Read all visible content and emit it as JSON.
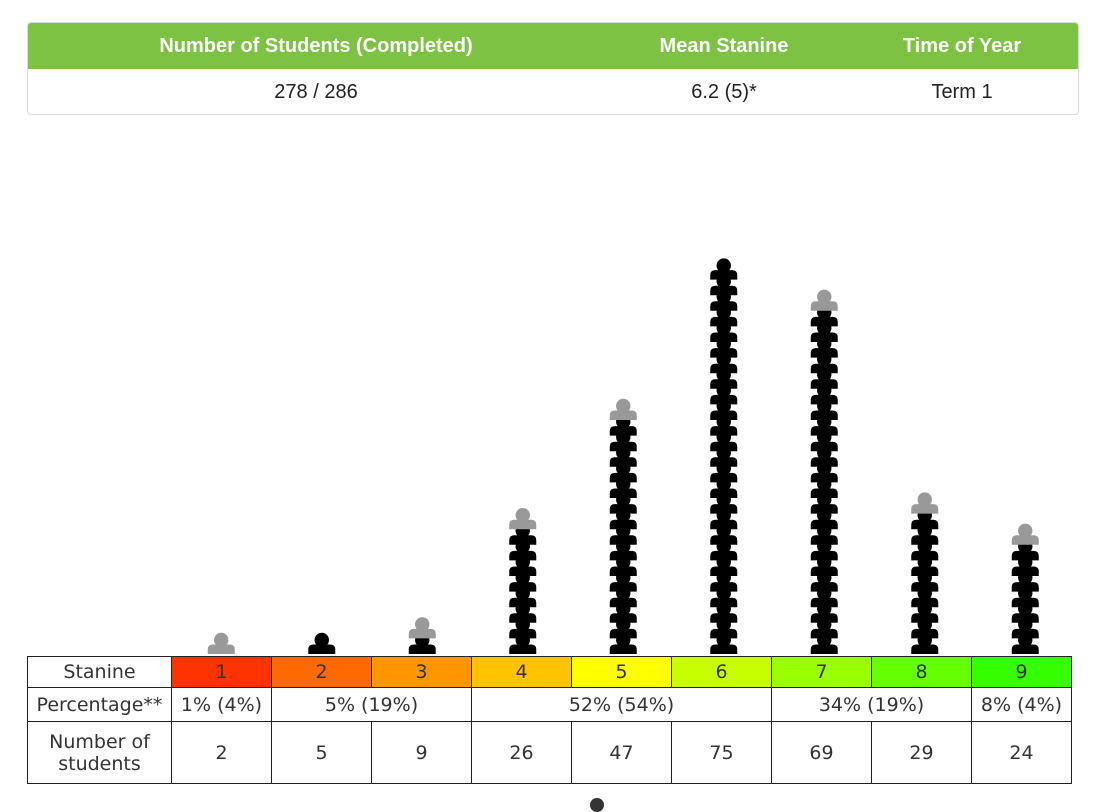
{
  "summary": {
    "headers": {
      "students": "Number of Students (Completed)",
      "mean": "Mean Stanine",
      "time": "Time of Year"
    },
    "values": {
      "students": "278 / 286",
      "mean": "6.2 (5)*",
      "time": "Term 1"
    },
    "header_color": "#7dc242"
  },
  "chart_data": {
    "type": "bar",
    "categories": [
      "1",
      "2",
      "3",
      "4",
      "5",
      "6",
      "7",
      "8",
      "9"
    ],
    "values": [
      2,
      5,
      9,
      26,
      47,
      75,
      69,
      29,
      24
    ],
    "icon_counts": {
      "full": [
        0,
        1,
        1,
        8,
        15,
        25,
        22,
        9,
        7
      ],
      "partial": [
        1,
        0,
        1,
        1,
        1,
        0,
        1,
        1,
        1
      ]
    },
    "icon_colors": {
      "full": "#000000",
      "partial": "#999999"
    }
  },
  "table": {
    "row_labels": {
      "stanine": "Stanine",
      "percentage": "Percentage**",
      "number_line1": "Number of",
      "number_line2": "students"
    },
    "stanine_colors": [
      "#ff3300",
      "#ff6a00",
      "#ff9500",
      "#ffc300",
      "#ffff00",
      "#c8ff00",
      "#99ff00",
      "#66ff00",
      "#33ff00"
    ],
    "percentages": [
      {
        "label": "1% (4%)",
        "span": 1
      },
      {
        "label": "5% (19%)",
        "span": 2
      },
      {
        "label": "52% (54%)",
        "span": 3
      },
      {
        "label": "34% (19%)",
        "span": 2
      },
      {
        "label": "8% (4%)",
        "span": 1
      }
    ]
  }
}
